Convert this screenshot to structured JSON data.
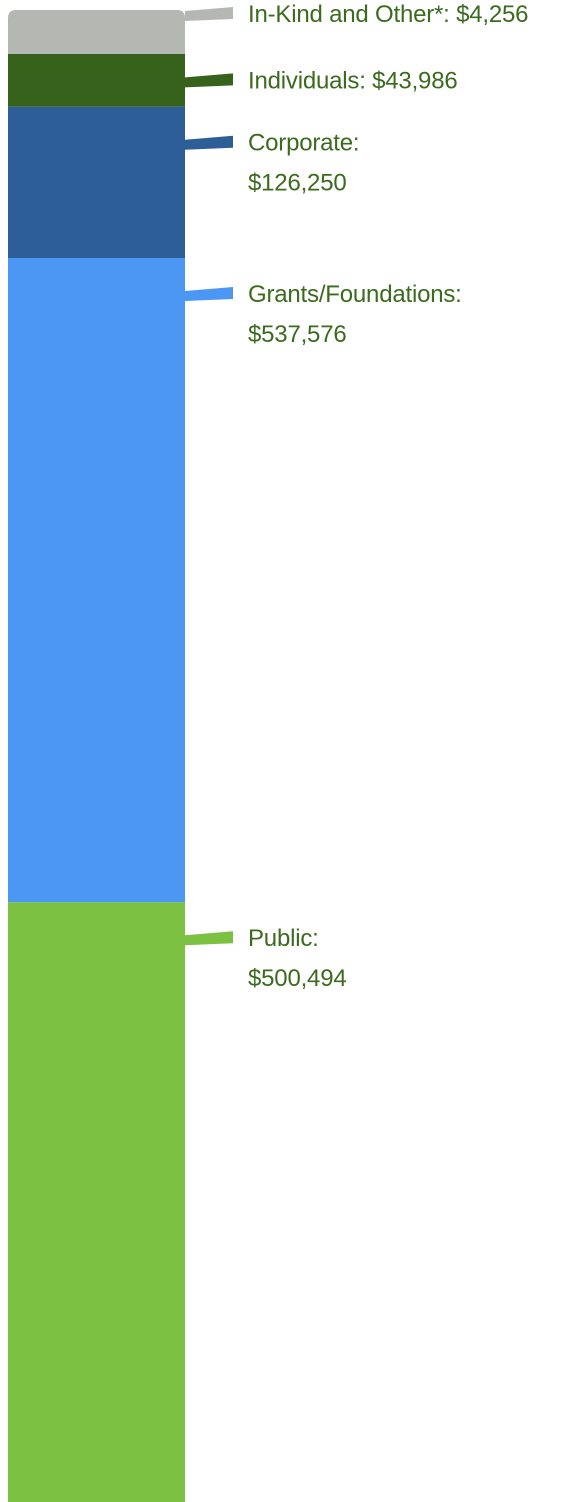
{
  "chart_data": {
    "type": "bar",
    "orientation": "vertical-stacked",
    "title": "",
    "xlabel": "",
    "ylabel": "",
    "label_color": "#3b6b1e",
    "series": [
      {
        "name": "Public",
        "label_line1": "Public:",
        "label_line2": "$500,494",
        "value": 500494,
        "color": "#7dc142"
      },
      {
        "name": "Grants/Foundations",
        "label_line1": "Grants/Foundations:",
        "label_line2": "$537,576",
        "value": 537576,
        "color": "#4c97f4"
      },
      {
        "name": "Corporate",
        "label_line1": "Corporate:",
        "label_line2": "$126,250",
        "value": 126250,
        "color": "#2d5e98"
      },
      {
        "name": "Individuals",
        "label_line1": "Individuals: $43,986",
        "label_line2": "",
        "value": 43986,
        "color": "#36621c"
      },
      {
        "name": "In-Kind and Other*",
        "label_line1": "In-Kind and Other*: $4,256",
        "label_line2": "",
        "value": 4256,
        "color": "#b5b8b2"
      }
    ]
  }
}
